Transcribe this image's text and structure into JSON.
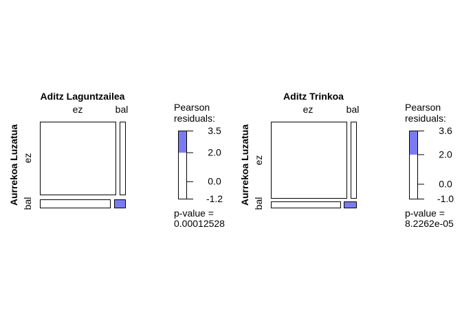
{
  "chart_data": [
    {
      "type": "mosaic",
      "title": "Aditz Laguntzailea",
      "row_variable": "Aurrekoa Luzatua",
      "row_levels": [
        "ez",
        "bal"
      ],
      "col_levels": [
        "ez",
        "bal"
      ],
      "cells": [
        {
          "row": "ez",
          "col": "ez",
          "shade": "none"
        },
        {
          "row": "ez",
          "col": "bal",
          "shade": "none"
        },
        {
          "row": "bal",
          "col": "ez",
          "shade": "none"
        },
        {
          "row": "bal",
          "col": "bal",
          "shade": "positive"
        }
      ],
      "legend": {
        "title_lines": [
          "Pearson",
          "residuals:"
        ],
        "ticks": [
          3.5,
          2.0,
          0.0,
          -1.2
        ],
        "range": [
          -1.2,
          3.5
        ],
        "shaded_from": 2.0,
        "pvalue_lines": [
          "p-value =",
          "0.00012528"
        ]
      }
    },
    {
      "type": "mosaic",
      "title": "Aditz Trinkoa",
      "row_variable": "Aurrekoa Luzatua",
      "row_levels": [
        "ez",
        "bal"
      ],
      "col_levels": [
        "ez",
        "bal"
      ],
      "cells": [
        {
          "row": "ez",
          "col": "ez",
          "shade": "none"
        },
        {
          "row": "ez",
          "col": "bal",
          "shade": "none"
        },
        {
          "row": "bal",
          "col": "ez",
          "shade": "none"
        },
        {
          "row": "bal",
          "col": "bal",
          "shade": "positive"
        }
      ],
      "legend": {
        "title_lines": [
          "Pearson",
          "residuals:"
        ],
        "ticks": [
          3.6,
          2.0,
          0.0,
          -1.0
        ],
        "range": [
          -1.0,
          3.6
        ],
        "shaded_from": 2.0,
        "pvalue_lines": [
          "p-value =",
          "8.2262e-05"
        ]
      }
    }
  ],
  "colors": {
    "positive": "#7b7bf0",
    "border": "#000000",
    "background": "#ffffff"
  }
}
